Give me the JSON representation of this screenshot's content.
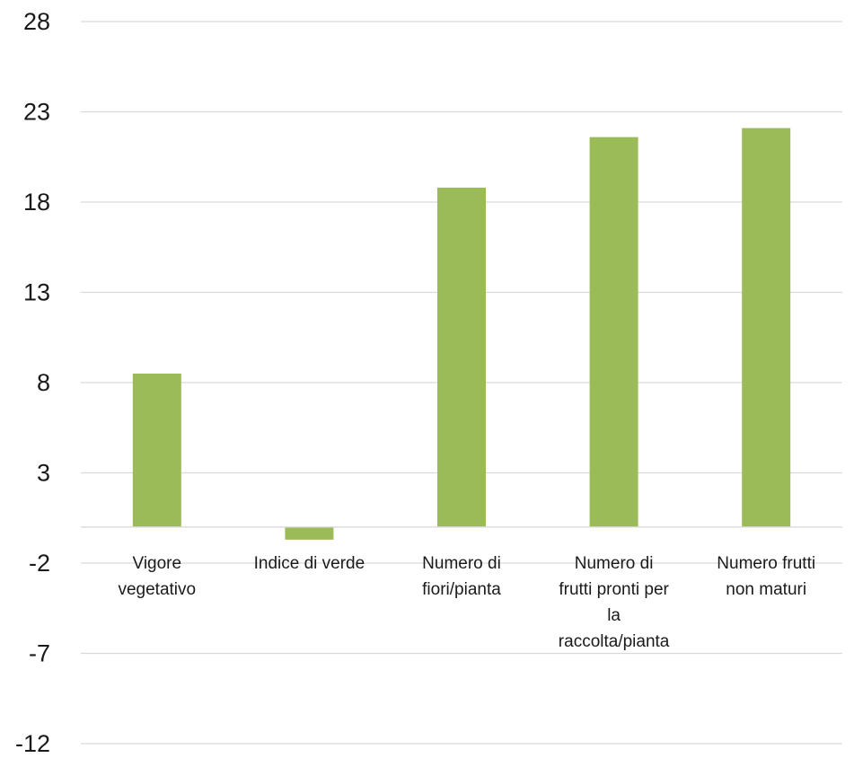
{
  "chart_data": {
    "type": "bar",
    "title": "",
    "xlabel": "",
    "ylabel": "",
    "categories": [
      [
        "Vigore",
        "vegetativo"
      ],
      [
        "Indice di verde"
      ],
      [
        "Numero di",
        "fiori/pianta"
      ],
      [
        "Numero di",
        "frutti pronti per",
        "la",
        "raccolta/pianta"
      ],
      [
        "Numero frutti",
        "non maturi"
      ]
    ],
    "values": [
      8.5,
      -0.7,
      18.8,
      21.6,
      22.1
    ],
    "ylim": [
      -12,
      28
    ],
    "yticks": [
      28,
      23,
      18,
      13,
      8,
      3,
      -2,
      -7,
      -12
    ],
    "grid": true,
    "legend": "none",
    "colors": {
      "bar": "#9bbb59",
      "grid": "#d9d9d9",
      "text": "#1a1a1a"
    }
  }
}
